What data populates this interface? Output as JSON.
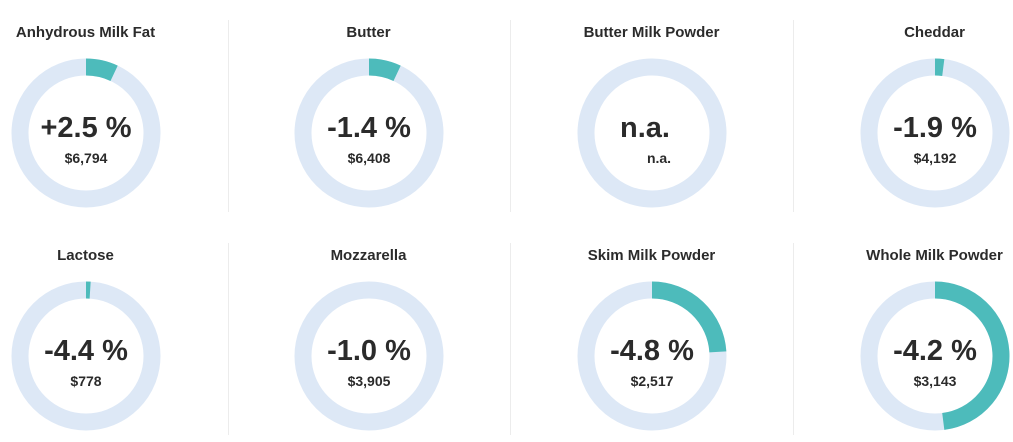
{
  "chart_data": {
    "type": "donut",
    "track_color": "#dde8f6",
    "arc_color": "#4dbbbb",
    "items": [
      {
        "title": "Anhydrous Milk Fat",
        "change": "+2.5 %",
        "value": 2.5,
        "price": "$6,794"
      },
      {
        "title": "Butter",
        "change": "-1.4 %",
        "value": -1.4,
        "price": "$6,408"
      },
      {
        "title": "Butter Milk Powder",
        "change": "n.a.",
        "value": null,
        "price": "n.a."
      },
      {
        "title": "Cheddar",
        "change": "-1.9 %",
        "value": -1.9,
        "price": "$4,192"
      },
      {
        "title": "Lactose",
        "change": "-4.4 %",
        "value": -4.4,
        "price": "$778"
      },
      {
        "title": "Mozzarella",
        "change": "-1.0 %",
        "value": -1.0,
        "price": "$3,905"
      },
      {
        "title": "Skim Milk Powder",
        "change": "-4.8 %",
        "value": -4.8,
        "price": "$2,517"
      },
      {
        "title": "Whole Milk Powder",
        "change": "-4.2 %",
        "value": -4.2,
        "price": "$3,143"
      }
    ],
    "arc_fractions": [
      0.07,
      0.07,
      0,
      0.02,
      0.01,
      0,
      0.24,
      0.48
    ]
  }
}
